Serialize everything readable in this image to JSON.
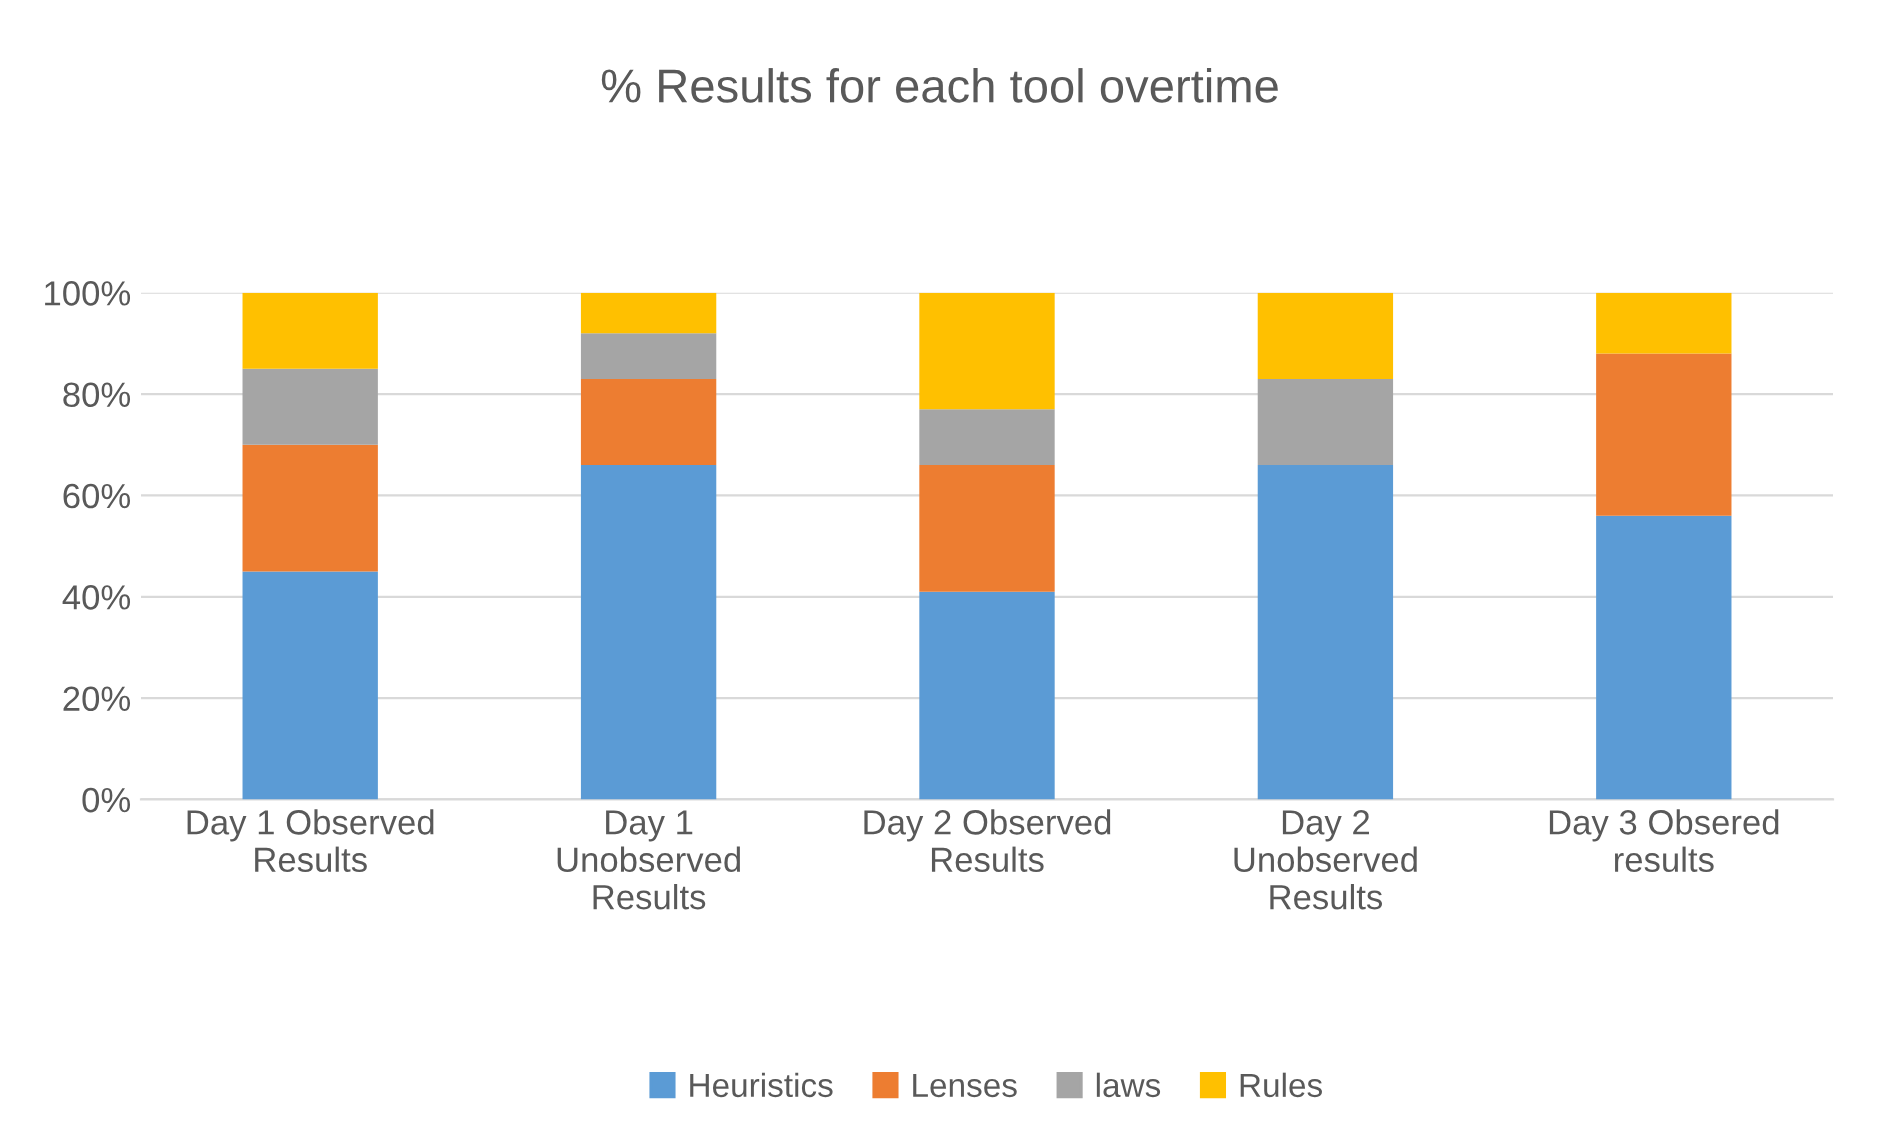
{
  "chart_data": {
    "type": "bar",
    "stacked": true,
    "title": "% Results for each tool overtime",
    "categories": [
      "Day 1 Observed Results",
      "Day 1 Unobserved Results",
      "Day 2 Observed Results",
      "Day 2 Unobserved Results",
      "Day 3 Obsered results"
    ],
    "series": [
      {
        "name": "Heuristics",
        "color": "#5b9bd5",
        "values": [
          45,
          66,
          41,
          66,
          56
        ]
      },
      {
        "name": "Lenses",
        "color": "#ed7d31",
        "values": [
          25,
          17,
          25,
          0,
          32
        ]
      },
      {
        "name": "laws",
        "color": "#a5a5a5",
        "values": [
          15,
          9,
          11,
          17,
          0
        ]
      },
      {
        "name": "Rules",
        "color": "#ffc000",
        "values": [
          15,
          8,
          23,
          17,
          12
        ]
      }
    ],
    "ylim": [
      0,
      100
    ],
    "yticks": [
      {
        "value": 0,
        "label": "0%"
      },
      {
        "value": 20,
        "label": "20%"
      },
      {
        "value": 40,
        "label": "40%"
      },
      {
        "value": 60,
        "label": "60%"
      },
      {
        "value": 80,
        "label": "80%"
      },
      {
        "value": 100,
        "label": "100%"
      }
    ],
    "grid": "y",
    "legend": "bottom"
  }
}
